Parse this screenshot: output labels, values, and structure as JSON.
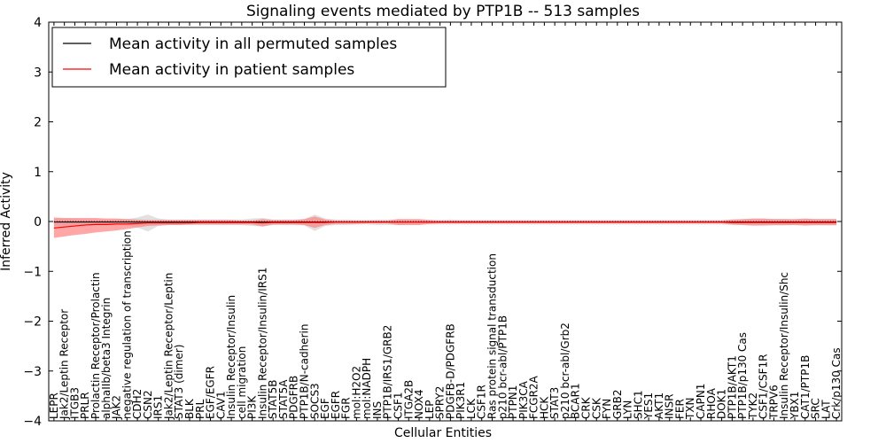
{
  "chart_data": {
    "type": "line",
    "title": "Signaling events mediated by PTP1B -- 513 samples",
    "xlabel": "Cellular Entities",
    "ylabel": "Inferred Activity",
    "ylim": [
      -4,
      4
    ],
    "yticks": [
      "4",
      "3",
      "2",
      "1",
      "0",
      "−1",
      "−2",
      "−3",
      "−4"
    ],
    "ytick_values": [
      4,
      3,
      2,
      1,
      0,
      -1,
      -2,
      -3,
      -4
    ],
    "grid": false,
    "legend_position": "top-left",
    "categories": [
      "LEPR",
      "Jak2/Leptin Receptor",
      "ITGB3",
      "PRLR",
      "Prolactin Receptor/Prolactin",
      "alphaIIb/beta3 Integrin",
      "JAK2",
      "negative regulation of transcription",
      "CDH2",
      "CSN2",
      "IRS1",
      "Jak2/Leptin Receptor/Leptin",
      "STAT3 (dimer)",
      "BLK",
      "PRL",
      "EGF/EGFR",
      "CAV1",
      "Insulin Receptor/Insulin",
      "cell migration",
      "PI3K",
      "Insulin Receptor/Insulin/IRS1",
      "STAT5B",
      "STAT5A",
      "PDGFRB",
      "PTP1B/N-cadherin",
      "SOCS3",
      "EGF",
      "EGFR",
      "FGR",
      "mol:H2O2",
      "mol:NADPH",
      "INS",
      "PTP1B/IRS1/GRB2",
      "CSF1",
      "ITGA2B",
      "NOX4",
      "LEP",
      "SPRY2",
      "PDGFB-D/PDGFRB",
      "PIK3R1",
      "LCK",
      "CSF1R",
      "Ras protein signal transduction",
      "p210 bcr-abl/PTP1B",
      "PTPN1",
      "PIK3CA",
      "FCGR2A",
      "HCK",
      "STAT3",
      "p210 bcr-abl/Grb2",
      "BCAR1",
      "CRK",
      "CSK",
      "FYN",
      "GRB2",
      "LYN",
      "SHC1",
      "YES1",
      "AKT1",
      "INSR",
      "FER",
      "TXN",
      "CAPN1",
      "RHOA",
      "DOK1",
      "PTP1B/AKT1",
      "PTP1B/p130 Cas",
      "TYK2",
      "CSF1/CSF1R",
      "TRPV6",
      "Insulin Receptor/Insulin/Shc",
      "YBX1",
      "CAT1/PTP1B",
      "SRC",
      "LAT",
      "Crk/p130 Cas"
    ],
    "series": [
      {
        "name": "Mean activity in all permuted samples",
        "color": "#000000",
        "values": [
          -0.01,
          -0.01,
          -0.01,
          -0.01,
          -0.01,
          -0.01,
          -0.01,
          -0.01,
          -0.01,
          -0.01,
          -0.01,
          -0.01,
          -0.01,
          -0.01,
          -0.01,
          -0.01,
          -0.01,
          -0.01,
          -0.01,
          -0.01,
          -0.01,
          -0.01,
          -0.01,
          -0.01,
          -0.01,
          -0.01,
          -0.01,
          -0.01,
          -0.01,
          -0.01,
          -0.01,
          -0.01,
          -0.01,
          -0.01,
          -0.01,
          -0.01,
          -0.01,
          -0.01,
          -0.01,
          -0.01,
          -0.01,
          -0.01,
          -0.01,
          -0.01,
          -0.01,
          -0.01,
          -0.01,
          -0.01,
          -0.01,
          -0.01,
          -0.01,
          -0.01,
          -0.01,
          -0.01,
          -0.01,
          -0.01,
          -0.01,
          -0.01,
          -0.01,
          -0.01,
          -0.01,
          -0.01,
          -0.01,
          -0.01,
          -0.01,
          -0.01,
          -0.01,
          -0.01,
          -0.01,
          -0.01,
          -0.01,
          -0.01,
          -0.01,
          -0.01,
          -0.01,
          -0.01
        ],
        "band_upper": [
          0.06,
          0.06,
          0.05,
          0.04,
          0.04,
          0.04,
          0.04,
          0.05,
          0.08,
          0.14,
          0.06,
          0.04,
          0.04,
          0.04,
          0.04,
          0.04,
          0.04,
          0.04,
          0.04,
          0.06,
          0.07,
          0.04,
          0.04,
          0.04,
          0.05,
          0.14,
          0.06,
          0.04,
          0.04,
          0.03,
          0.03,
          0.04,
          0.04,
          0.04,
          0.03,
          0.03,
          0.03,
          0.03,
          0.04,
          0.03,
          0.03,
          0.03,
          0.03,
          0.03,
          0.03,
          0.03,
          0.03,
          0.03,
          0.03,
          0.03,
          0.03,
          0.03,
          0.03,
          0.03,
          0.03,
          0.03,
          0.03,
          0.03,
          0.03,
          0.03,
          0.03,
          0.03,
          0.03,
          0.03,
          0.03,
          0.04,
          0.04,
          0.05,
          0.05,
          0.05,
          0.05,
          0.04,
          0.05,
          0.05,
          0.05,
          0.05
        ],
        "band_lower": [
          -0.08,
          -0.08,
          -0.07,
          -0.07,
          -0.07,
          -0.07,
          -0.07,
          -0.08,
          -0.12,
          -0.2,
          -0.09,
          -0.07,
          -0.07,
          -0.07,
          -0.07,
          -0.07,
          -0.07,
          -0.07,
          -0.07,
          -0.09,
          -0.1,
          -0.07,
          -0.07,
          -0.07,
          -0.08,
          -0.19,
          -0.09,
          -0.07,
          -0.07,
          -0.06,
          -0.06,
          -0.07,
          -0.07,
          -0.07,
          -0.06,
          -0.06,
          -0.06,
          -0.06,
          -0.06,
          -0.06,
          -0.06,
          -0.06,
          -0.06,
          -0.06,
          -0.06,
          -0.06,
          -0.06,
          -0.06,
          -0.06,
          -0.06,
          -0.06,
          -0.06,
          -0.06,
          -0.06,
          -0.06,
          -0.06,
          -0.06,
          -0.06,
          -0.06,
          -0.06,
          -0.06,
          -0.06,
          -0.06,
          -0.06,
          -0.06,
          -0.07,
          -0.07,
          -0.08,
          -0.08,
          -0.08,
          -0.08,
          -0.07,
          -0.08,
          -0.08,
          -0.08,
          -0.08
        ],
        "band_color": "#c8c8c8"
      },
      {
        "name": "Mean activity in patient samples",
        "color": "#ff0000",
        "values": [
          -0.13,
          -0.11,
          -0.09,
          -0.07,
          -0.06,
          -0.06,
          -0.05,
          -0.05,
          -0.04,
          -0.03,
          -0.03,
          -0.03,
          -0.03,
          -0.03,
          -0.02,
          -0.02,
          -0.02,
          -0.02,
          -0.02,
          -0.02,
          -0.03,
          -0.02,
          -0.02,
          -0.02,
          -0.02,
          -0.02,
          -0.02,
          -0.01,
          -0.01,
          -0.01,
          -0.01,
          -0.01,
          -0.01,
          -0.01,
          -0.01,
          -0.01,
          -0.01,
          -0.01,
          -0.01,
          -0.01,
          -0.01,
          -0.01,
          -0.01,
          -0.01,
          -0.01,
          -0.01,
          -0.01,
          -0.01,
          -0.01,
          -0.01,
          -0.01,
          -0.01,
          -0.01,
          -0.01,
          -0.01,
          -0.01,
          -0.01,
          -0.01,
          -0.01,
          -0.01,
          -0.01,
          -0.01,
          -0.01,
          -0.01,
          -0.01,
          -0.02,
          -0.02,
          -0.02,
          -0.02,
          -0.02,
          -0.02,
          -0.02,
          -0.02,
          -0.02,
          -0.02,
          -0.02
        ],
        "band_upper": [
          0.08,
          0.07,
          0.07,
          0.07,
          0.07,
          0.06,
          0.06,
          0.05,
          0.04,
          0.03,
          0.03,
          0.03,
          0.03,
          0.03,
          0.03,
          0.03,
          0.03,
          0.03,
          0.02,
          0.02,
          0.05,
          0.03,
          0.03,
          0.03,
          0.05,
          0.1,
          0.04,
          0.02,
          0.02,
          0.02,
          0.02,
          0.02,
          0.02,
          0.05,
          0.05,
          0.05,
          0.03,
          0.02,
          0.02,
          0.02,
          0.02,
          0.02,
          0.02,
          0.02,
          0.02,
          0.02,
          0.02,
          0.02,
          0.02,
          0.02,
          0.02,
          0.02,
          0.02,
          0.02,
          0.02,
          0.02,
          0.02,
          0.02,
          0.02,
          0.02,
          0.02,
          0.02,
          0.02,
          0.02,
          0.02,
          0.04,
          0.05,
          0.06,
          0.06,
          0.05,
          0.05,
          0.05,
          0.06,
          0.05,
          0.05,
          0.05
        ],
        "band_lower": [
          -0.33,
          -0.3,
          -0.27,
          -0.25,
          -0.22,
          -0.2,
          -0.18,
          -0.15,
          -0.12,
          -0.09,
          -0.08,
          -0.07,
          -0.07,
          -0.06,
          -0.06,
          -0.06,
          -0.06,
          -0.06,
          -0.06,
          -0.06,
          -0.1,
          -0.06,
          -0.06,
          -0.06,
          -0.07,
          -0.13,
          -0.07,
          -0.05,
          -0.05,
          -0.05,
          -0.04,
          -0.04,
          -0.04,
          -0.07,
          -0.07,
          -0.07,
          -0.05,
          -0.04,
          -0.04,
          -0.04,
          -0.04,
          -0.04,
          -0.04,
          -0.04,
          -0.04,
          -0.04,
          -0.04,
          -0.04,
          -0.04,
          -0.04,
          -0.04,
          -0.04,
          -0.04,
          -0.04,
          -0.04,
          -0.04,
          -0.04,
          -0.04,
          -0.04,
          -0.04,
          -0.04,
          -0.04,
          -0.04,
          -0.04,
          -0.04,
          -0.06,
          -0.07,
          -0.08,
          -0.08,
          -0.07,
          -0.07,
          -0.07,
          -0.08,
          -0.07,
          -0.07,
          -0.07
        ],
        "band_color": "#ff8080"
      }
    ]
  }
}
